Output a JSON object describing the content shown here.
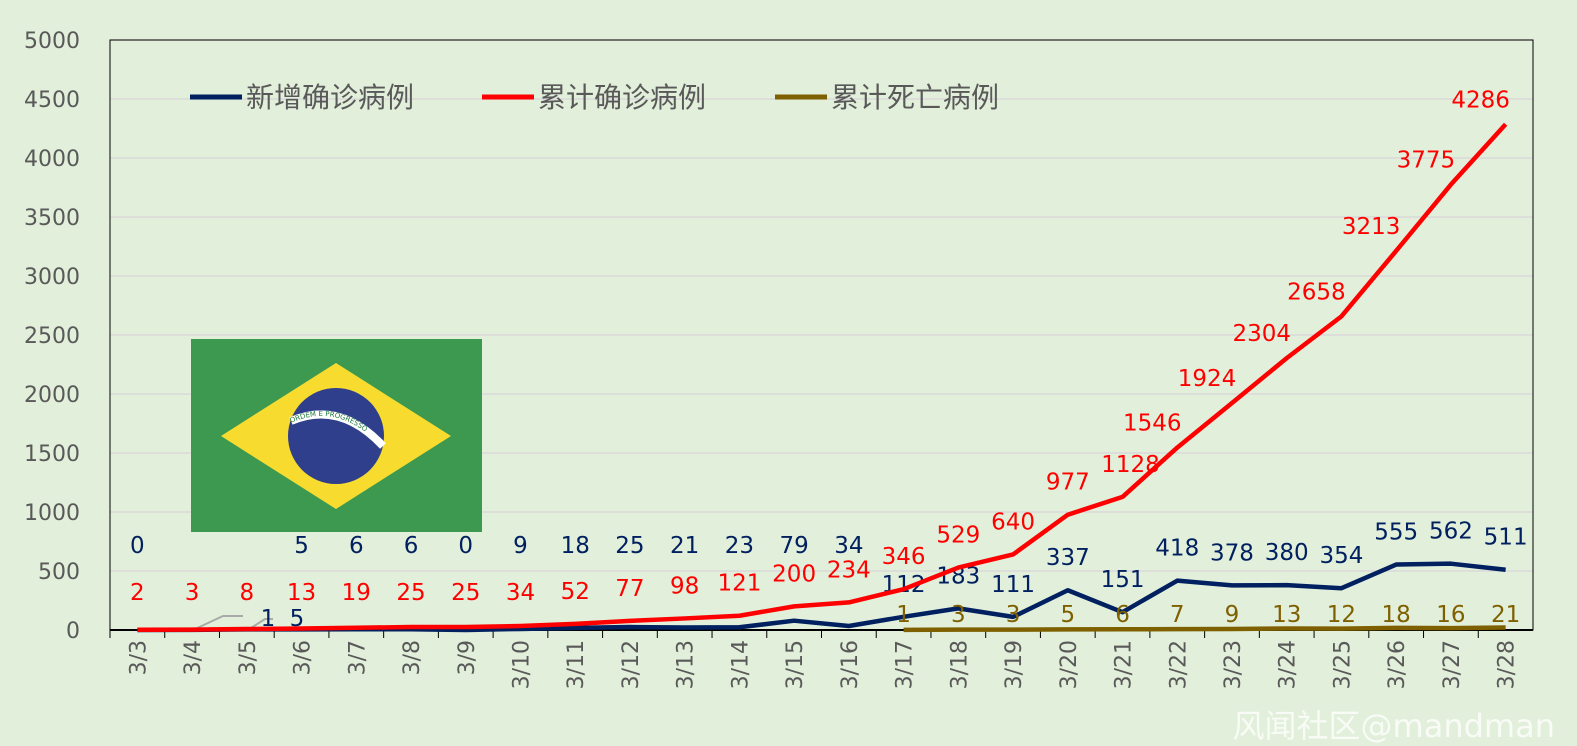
{
  "chart_data": {
    "type": "line",
    "title": "",
    "ylim": [
      0,
      5000
    ],
    "yticks": [
      0,
      500,
      1000,
      1500,
      2000,
      2500,
      3000,
      3500,
      4000,
      4500,
      5000
    ],
    "grid": true,
    "legend_position": "top",
    "categories": [
      "3/3",
      "3/4",
      "3/5",
      "3/6",
      "3/7",
      "3/8",
      "3/9",
      "3/10",
      "3/11",
      "3/12",
      "3/13",
      "3/14",
      "3/15",
      "3/16",
      "3/17",
      "3/18",
      "3/19",
      "3/20",
      "3/21",
      "3/22",
      "3/23",
      "3/24",
      "3/25",
      "3/26",
      "3/27",
      "3/28"
    ],
    "series": [
      {
        "name": "新增确诊病例",
        "color": "#002060",
        "values": [
          0,
          1,
          5,
          5,
          6,
          6,
          0,
          9,
          18,
          25,
          21,
          23,
          79,
          34,
          112,
          183,
          111,
          337,
          151,
          418,
          378,
          380,
          354,
          555,
          562,
          511
        ]
      },
      {
        "name": "累计确诊病例",
        "color": "#ff0000",
        "values": [
          2,
          3,
          8,
          13,
          19,
          25,
          25,
          34,
          52,
          77,
          98,
          121,
          200,
          234,
          346,
          529,
          640,
          977,
          1128,
          1546,
          1924,
          2304,
          2658,
          3213,
          3775,
          4286
        ]
      },
      {
        "name": "累计死亡病例",
        "color": "#7f6000",
        "values": [
          null,
          null,
          null,
          null,
          null,
          null,
          null,
          null,
          null,
          null,
          null,
          null,
          null,
          null,
          1,
          3,
          3,
          5,
          6,
          7,
          9,
          13,
          12,
          18,
          16,
          21
        ]
      }
    ]
  },
  "flag": {
    "motto": "ORDEM E PROGRESSO"
  },
  "watermark": "风闻社区@mandman"
}
